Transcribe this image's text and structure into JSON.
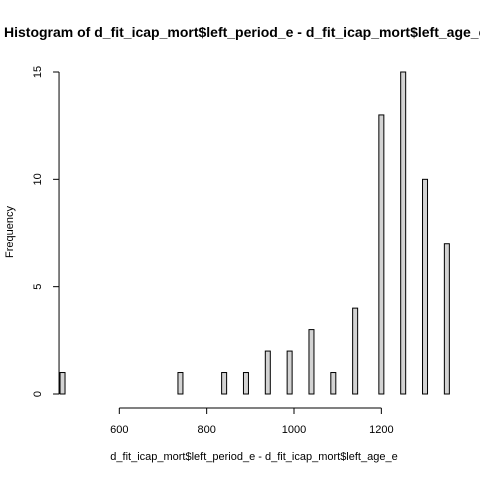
{
  "chart_data": {
    "type": "bar",
    "title": "Histogram of d_fit_icap_mort$left_period_e - d_fit_icap_mort$left_age_e",
    "xlabel": "d_fit_icap_mort$left_period_e - d_fit_icap_mort$left_age_e",
    "ylabel": "Frequency",
    "xlim": [
      462,
      1355
    ],
    "ylim": [
      0,
      15
    ],
    "x_ticks": [
      600,
      800,
      1000,
      1200
    ],
    "y_ticks": [
      0,
      5,
      10,
      15
    ],
    "bin_width": 10,
    "bins": [
      {
        "x": 470,
        "count": 1
      },
      {
        "x": 740,
        "count": 1
      },
      {
        "x": 840,
        "count": 1
      },
      {
        "x": 890,
        "count": 1
      },
      {
        "x": 940,
        "count": 2
      },
      {
        "x": 990,
        "count": 2
      },
      {
        "x": 1040,
        "count": 3
      },
      {
        "x": 1090,
        "count": 1
      },
      {
        "x": 1140,
        "count": 4
      },
      {
        "x": 1200,
        "count": 13
      },
      {
        "x": 1250,
        "count": 15
      },
      {
        "x": 1300,
        "count": 10
      },
      {
        "x": 1350,
        "count": 7
      }
    ],
    "colors": {
      "bar_fill": "#d3d3d3",
      "bar_stroke": "#000000"
    },
    "grid": false
  }
}
